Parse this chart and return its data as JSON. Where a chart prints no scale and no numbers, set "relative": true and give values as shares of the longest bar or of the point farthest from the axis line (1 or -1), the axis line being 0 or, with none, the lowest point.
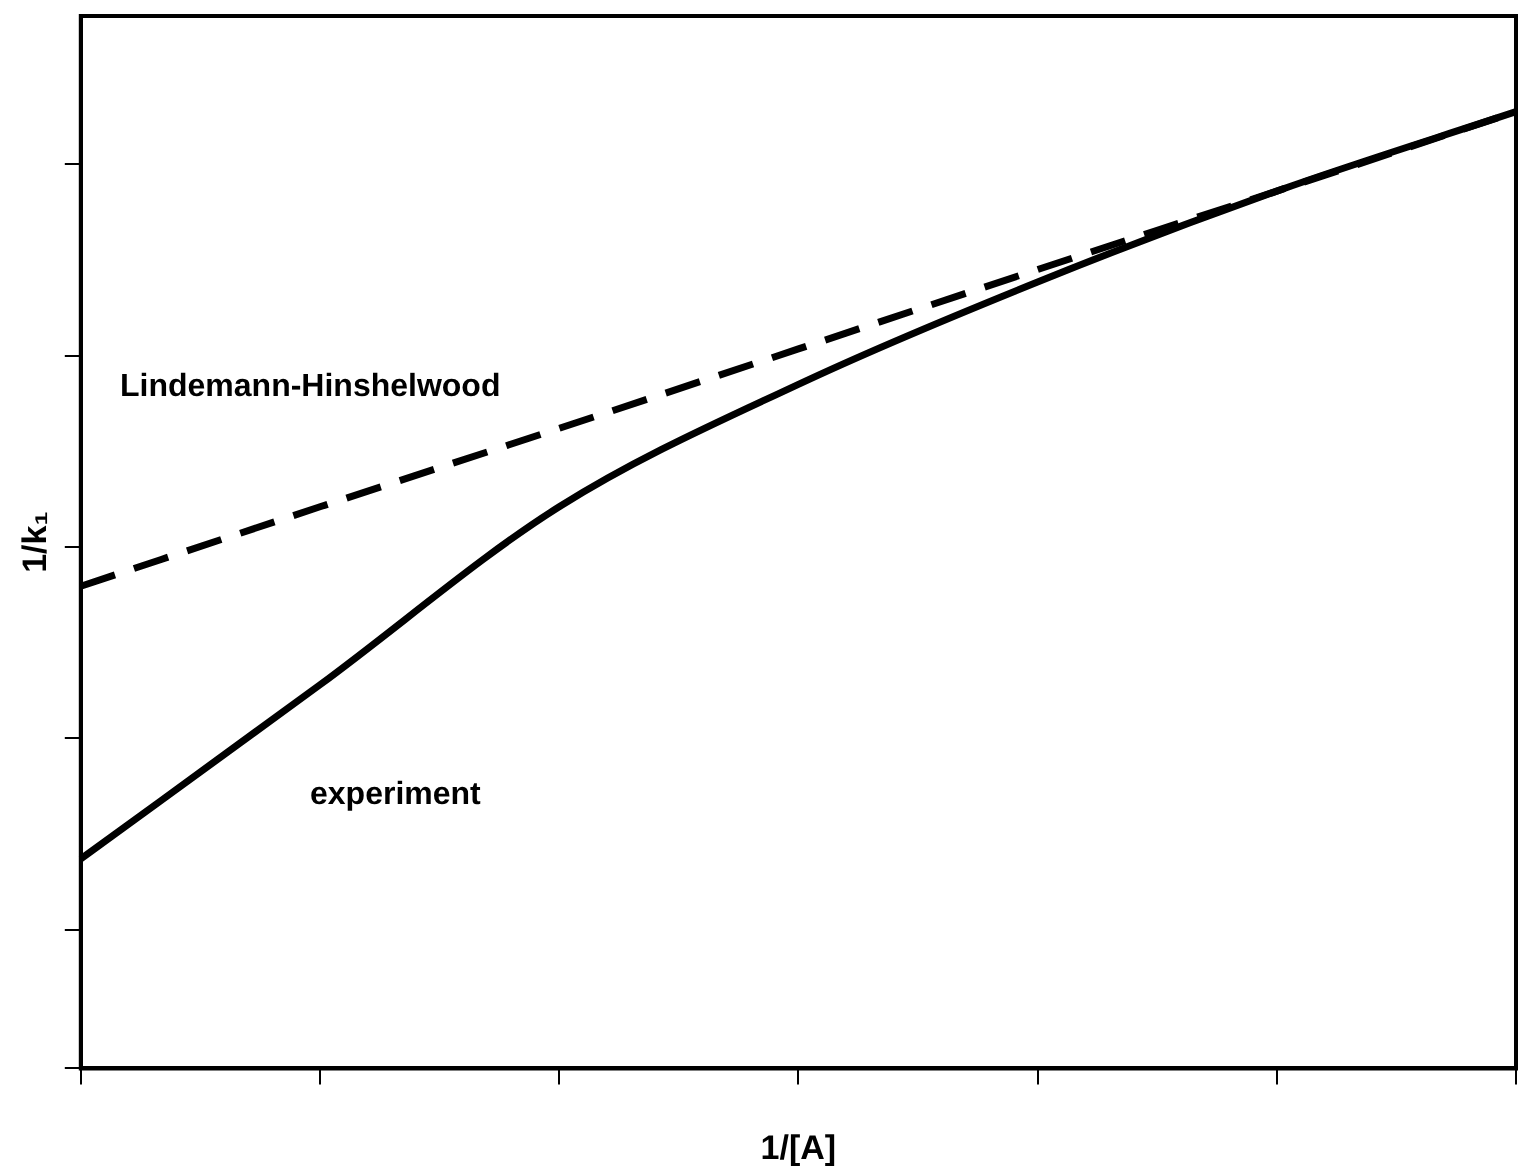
{
  "chart_data": {
    "type": "line",
    "relative": true,
    "xlabel": "1/[A]",
    "ylabel": "1/k₁",
    "categories": [
      null,
      null,
      null,
      null,
      null,
      null,
      null
    ],
    "marker": "none",
    "grid": false,
    "legend": false,
    "series": [
      {
        "name": "Lindemann-Hinshelwood",
        "color": "#000000",
        "line_style": "dashed",
        "values": [
          0.504,
          0.587,
          0.669,
          0.752,
          0.835,
          0.917,
          1
        ]
      },
      {
        "name": "experiment",
        "color": "#000000",
        "line_style": "solid",
        "values": [
          0.219,
          0.401,
          0.587,
          0.715,
          0.822,
          0.917,
          1
        ]
      }
    ]
  }
}
